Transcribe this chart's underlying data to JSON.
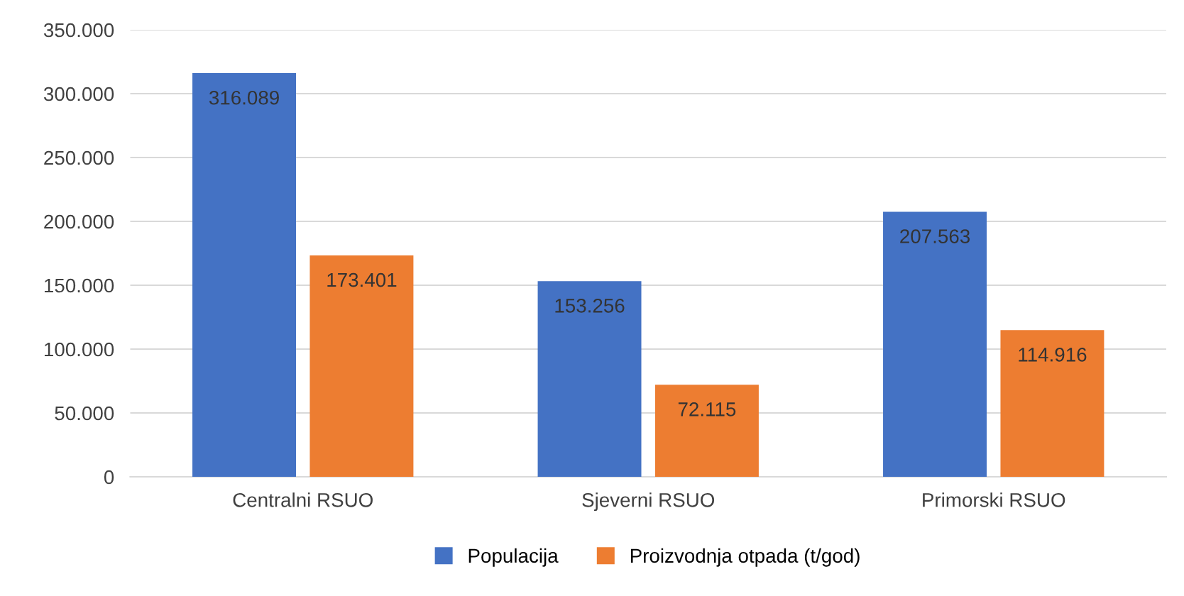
{
  "chart_data": {
    "type": "bar",
    "categories": [
      "Centralni RSUO",
      "Sjeverni RSUO",
      "Primorski RSUO"
    ],
    "series": [
      {
        "name": "Populacija",
        "color": "#4472c4",
        "values": [
          316089,
          153256,
          207563
        ],
        "value_labels": [
          "316.089",
          "153.256",
          "207.563"
        ]
      },
      {
        "name": "Proizvodnja otpada (t/god)",
        "color": "#ed7d31",
        "values": [
          173401,
          72115,
          114916
        ],
        "value_labels": [
          "173.401",
          "72.115",
          "114.916"
        ]
      }
    ],
    "ylim": [
      0,
      350000
    ],
    "yticks": [
      {
        "value": 0,
        "label": "0"
      },
      {
        "value": 50000,
        "label": "50.000"
      },
      {
        "value": 100000,
        "label": "100.000"
      },
      {
        "value": 150000,
        "label": "150.000"
      },
      {
        "value": 200000,
        "label": "200.000"
      },
      {
        "value": 250000,
        "label": "250.000"
      },
      {
        "value": 300000,
        "label": "300.000"
      },
      {
        "value": 350000,
        "label": "350.000"
      }
    ],
    "grid": "y",
    "legend": "bottom"
  }
}
